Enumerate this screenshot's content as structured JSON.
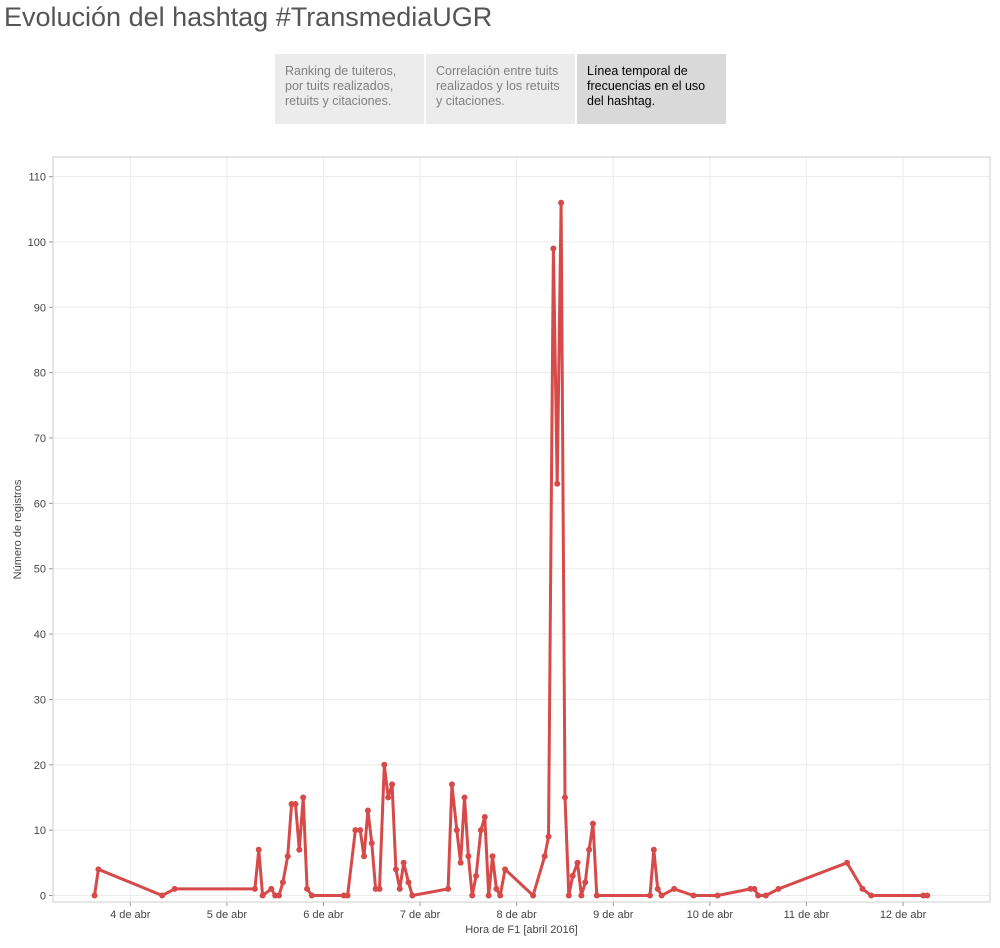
{
  "title": "Evolución del hashtag #TransmediaUGR",
  "tabs": [
    {
      "label": "Ranking de tuiteros, por tuits realizados, retuits y citaciones.",
      "active": false
    },
    {
      "label": "Correlación entre tuits realizados y los retuits y citaciones.",
      "active": false
    },
    {
      "label": "Línea temporal de frecuencias en el uso del hashtag.",
      "active": true
    }
  ],
  "colors": {
    "line": "#d64a4a",
    "grid": "#ececec",
    "frame": "#cccccc"
  },
  "chart_data": {
    "type": "line",
    "xlabel": "Hora de F1 [abril 2016]",
    "ylabel": "Número de registros",
    "x_unit": "days (April 2016)",
    "xlim": [
      3.2,
      12.9
    ],
    "ylim": [
      -1,
      113
    ],
    "y_ticks": [
      0,
      10,
      20,
      30,
      40,
      50,
      60,
      70,
      80,
      90,
      100,
      110
    ],
    "x_ticks": [
      {
        "value": 4,
        "label": "4 de abr"
      },
      {
        "value": 5,
        "label": "5 de abr"
      },
      {
        "value": 6,
        "label": "6 de abr"
      },
      {
        "value": 7,
        "label": "7 de abr"
      },
      {
        "value": 8,
        "label": "8 de abr"
      },
      {
        "value": 9,
        "label": "9 de abr"
      },
      {
        "value": 10,
        "label": "10 de abr"
      },
      {
        "value": 11,
        "label": "11 de abr"
      },
      {
        "value": 12,
        "label": "12 de abr"
      }
    ],
    "series": [
      {
        "points": [
          [
            3.63,
            0
          ],
          [
            3.67,
            4
          ],
          [
            4.33,
            0
          ],
          [
            4.46,
            1
          ],
          [
            5.29,
            1
          ],
          [
            5.33,
            7
          ],
          [
            5.37,
            0
          ],
          [
            5.46,
            1
          ],
          [
            5.5,
            0
          ],
          [
            5.54,
            0
          ],
          [
            5.58,
            2
          ],
          [
            5.63,
            6
          ],
          [
            5.67,
            14
          ],
          [
            5.71,
            14
          ],
          [
            5.75,
            7
          ],
          [
            5.79,
            15
          ],
          [
            5.83,
            1
          ],
          [
            5.88,
            0
          ],
          [
            6.21,
            0
          ],
          [
            6.25,
            0
          ],
          [
            6.33,
            10
          ],
          [
            6.38,
            10
          ],
          [
            6.42,
            6
          ],
          [
            6.46,
            13
          ],
          [
            6.5,
            8
          ],
          [
            6.54,
            1
          ],
          [
            6.58,
            1
          ],
          [
            6.63,
            20
          ],
          [
            6.67,
            15
          ],
          [
            6.71,
            17
          ],
          [
            6.75,
            4
          ],
          [
            6.79,
            1
          ],
          [
            6.83,
            5
          ],
          [
            6.88,
            2
          ],
          [
            6.92,
            0
          ],
          [
            7.29,
            1
          ],
          [
            7.33,
            17
          ],
          [
            7.38,
            10
          ],
          [
            7.42,
            5
          ],
          [
            7.46,
            15
          ],
          [
            7.5,
            6
          ],
          [
            7.54,
            0
          ],
          [
            7.58,
            3
          ],
          [
            7.63,
            10
          ],
          [
            7.67,
            12
          ],
          [
            7.71,
            0
          ],
          [
            7.75,
            6
          ],
          [
            7.79,
            1
          ],
          [
            7.83,
            0
          ],
          [
            7.88,
            4
          ],
          [
            8.17,
            0
          ],
          [
            8.29,
            6
          ],
          [
            8.33,
            9
          ],
          [
            8.38,
            99
          ],
          [
            8.42,
            63
          ],
          [
            8.46,
            106
          ],
          [
            8.5,
            15
          ],
          [
            8.54,
            0
          ],
          [
            8.58,
            3
          ],
          [
            8.63,
            5
          ],
          [
            8.67,
            0
          ],
          [
            8.71,
            2
          ],
          [
            8.75,
            7
          ],
          [
            8.79,
            11
          ],
          [
            8.83,
            0
          ],
          [
            9.38,
            0
          ],
          [
            9.42,
            7
          ],
          [
            9.46,
            1
          ],
          [
            9.5,
            0
          ],
          [
            9.63,
            1
          ],
          [
            9.83,
            0
          ],
          [
            10.08,
            0
          ],
          [
            10.42,
            1
          ],
          [
            10.46,
            1
          ],
          [
            10.5,
            0
          ],
          [
            10.58,
            0
          ],
          [
            10.71,
            1
          ],
          [
            11.42,
            5
          ],
          [
            11.58,
            1
          ],
          [
            11.67,
            0
          ],
          [
            12.21,
            0
          ],
          [
            12.25,
            0
          ]
        ]
      }
    ]
  }
}
